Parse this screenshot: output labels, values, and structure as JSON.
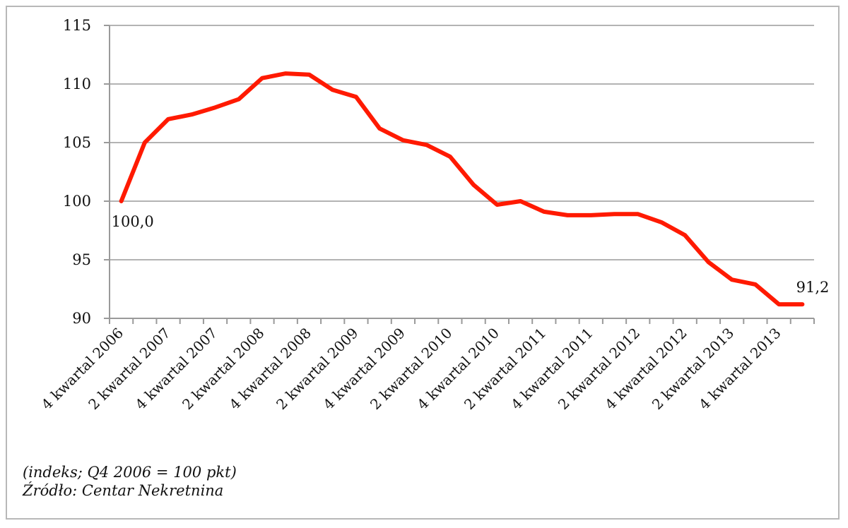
{
  "chart_data": {
    "type": "line",
    "ylim": [
      90,
      115
    ],
    "yticks": [
      "115",
      "110",
      "105",
      "100",
      "95",
      "90"
    ],
    "grid": true,
    "categories": [
      "4 kwartal 2006",
      "1 kwartal 2007",
      "2 kwartal 2007",
      "3 kwartal 2007",
      "4 kwartal 2007",
      "1 kwartal 2008",
      "2 kwartal 2008",
      "3 kwartal 2008",
      "4 kwartal 2008",
      "1 kwartal 2009",
      "2 kwartal 2009",
      "3 kwartal 2009",
      "4 kwartal 2009",
      "1 kwartal 2010",
      "2 kwartal 2010",
      "3 kwartal 2010",
      "4 kwartal 2010",
      "1 kwartal 2011",
      "2 kwartal 2011",
      "3 kwartal 2011",
      "4 kwartal 2011",
      "1 kwartal 2012",
      "2 kwartal 2012",
      "3 kwartal 2012",
      "4 kwartal 2012",
      "1 kwartal 2013",
      "2 kwartal 2013",
      "3 kwartal 2013",
      "4 kwartal 2013",
      "1 kwartal 2014"
    ],
    "visible_tick_labels": [
      "4 kwartal 2006",
      "2 kwartal 2007",
      "4 kwartal 2007",
      "2 kwartal 2008",
      "4 kwartal 2008",
      "2 kwartal 2009",
      "4 kwartal 2009",
      "2 kwartal 2010",
      "4 kwartal 2010",
      "2 kwartal 2011",
      "4 kwartal 2011",
      "2 kwartal 2012",
      "4 kwartal 2012",
      "2 kwartal 2013",
      "4 kwartal 2013"
    ],
    "series": [
      {
        "color": "#ff1a00",
        "values": [
          100.0,
          105.0,
          107.0,
          107.4,
          108.0,
          108.7,
          110.5,
          110.9,
          110.8,
          109.5,
          108.9,
          106.2,
          105.2,
          104.8,
          103.8,
          101.4,
          99.7,
          100.0,
          99.1,
          98.8,
          98.8,
          98.9,
          98.9,
          98.2,
          97.1,
          94.8,
          93.3,
          92.9,
          91.2,
          91.2
        ]
      }
    ],
    "annotations": [
      {
        "text": "100,0",
        "index": 0
      },
      {
        "text": "91,2",
        "index": 29
      }
    ]
  },
  "notes": {
    "line1": "(indeks; Q4 2006 = 100 pkt)",
    "line2": "Źródło: Centar Nekretnina"
  }
}
